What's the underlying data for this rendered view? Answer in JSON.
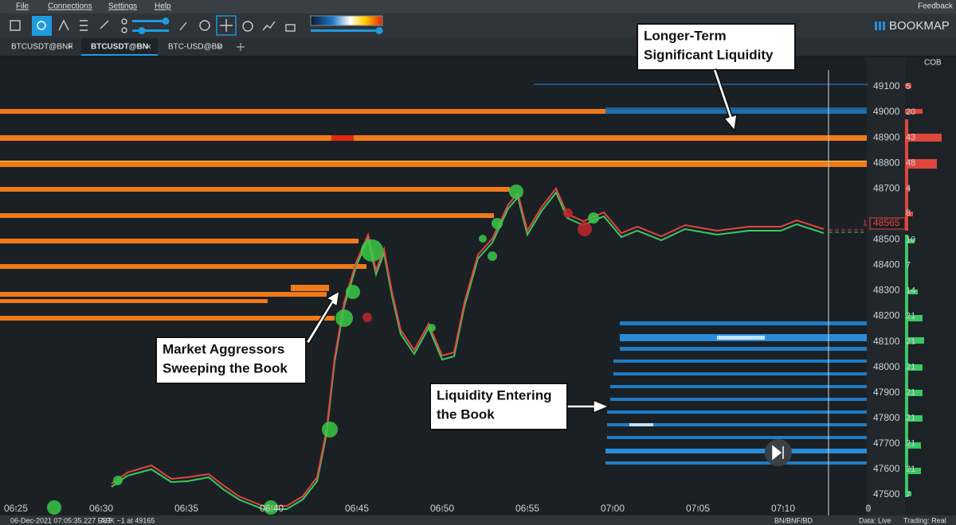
{
  "menu": [
    "File",
    "Connections",
    "Settings",
    "Help"
  ],
  "feedback": "Feedback",
  "brand": "BOOKMAP",
  "tabs": [
    "BTCUSDT@BNF",
    "BTCUSDT@BN",
    "BTC-USD@BD"
  ],
  "cob_header": "COB",
  "price_axis": [
    {
      "price": "49100",
      "cob": "5"
    },
    {
      "price": "49000",
      "cob": "20"
    },
    {
      "price": "48900",
      "cob": "43"
    },
    {
      "price": "48800",
      "cob": "48"
    },
    {
      "price": "48700",
      "cob": "4"
    },
    {
      "price": "48500",
      "cob": "10"
    },
    {
      "price": "48400",
      "cob": "7"
    },
    {
      "price": "48300",
      "cob": "14"
    },
    {
      "price": "48200",
      "cob": "21"
    },
    {
      "price": "48100",
      "cob": "21"
    },
    {
      "price": "48000",
      "cob": "21"
    },
    {
      "price": "47900",
      "cob": "21"
    },
    {
      "price": "47800",
      "cob": "21"
    },
    {
      "price": "47700",
      "cob": "21"
    },
    {
      "price": "47600",
      "cob": "21"
    },
    {
      "price": "47500",
      "cob": "7"
    }
  ],
  "current_price": {
    "marker": "1",
    "price": "48565",
    "cob": "8"
  },
  "time_axis": [
    "06:25",
    "06:30",
    "06:35",
    "06:40",
    "06:45",
    "06:50",
    "06:55",
    "07:00",
    "07:05",
    "07:10",
    "0"
  ],
  "annotations": {
    "longer_term": [
      "Longer-Term",
      "Significant Liquidity"
    ],
    "aggressors": [
      "Market Aggressors",
      "Sweeping the Book"
    ],
    "entering": [
      "Liquidity Entering",
      "the Book"
    ]
  },
  "status": {
    "timestamp": "06-Dec-2021 07:05:35.227 EST",
    "ask": "ASK ~1 at 49165",
    "feeds": "BN/BNF/BD",
    "data": "Data: Live",
    "trading": "Trading: Real"
  }
}
